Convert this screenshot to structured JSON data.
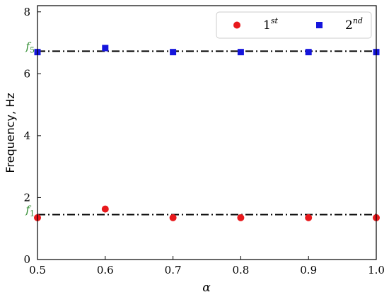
{
  "chart_data": {
    "type": "scatter",
    "xlabel": "α",
    "ylabel": "Frequency, Hz",
    "xlim": [
      0.5,
      1.0
    ],
    "ylim": [
      0,
      8.2
    ],
    "x_ticks": [
      0.5,
      0.6,
      0.7,
      0.8,
      0.9,
      1.0
    ],
    "x_tick_labels": [
      "0.5",
      "0.6",
      "0.7",
      "0.8",
      "0.9",
      "1.0"
    ],
    "y_ticks": [
      0,
      2,
      4,
      6,
      8
    ],
    "y_tick_labels": [
      "0",
      "2",
      "4",
      "6",
      "8"
    ],
    "grid": false,
    "legend_position": "top-right",
    "series": [
      {
        "name": "1st",
        "name_base": "1",
        "name_sup": "st",
        "marker": "circle",
        "color": "#e8191c",
        "x": [
          0.5,
          0.6,
          0.7,
          0.8,
          0.9,
          1.0
        ],
        "y": [
          1.35,
          1.63,
          1.35,
          1.35,
          1.35,
          1.35
        ]
      },
      {
        "name": "2nd",
        "name_base": "2",
        "name_sup": "nd",
        "marker": "square",
        "color": "#1515dc",
        "x": [
          0.5,
          0.6,
          0.7,
          0.8,
          0.9,
          1.0
        ],
        "y": [
          6.7,
          6.83,
          6.7,
          6.7,
          6.7,
          6.7
        ]
      }
    ],
    "reference_lines": [
      {
        "label_base": "f",
        "label_sub": "1",
        "y": 1.45,
        "style": "dash-dot",
        "color": "#000000",
        "label_color": "#2e8b2e"
      },
      {
        "label_base": "f",
        "label_sub": "5",
        "y": 6.73,
        "style": "dash-dot",
        "color": "#000000",
        "label_color": "#2e8b2e"
      }
    ]
  }
}
